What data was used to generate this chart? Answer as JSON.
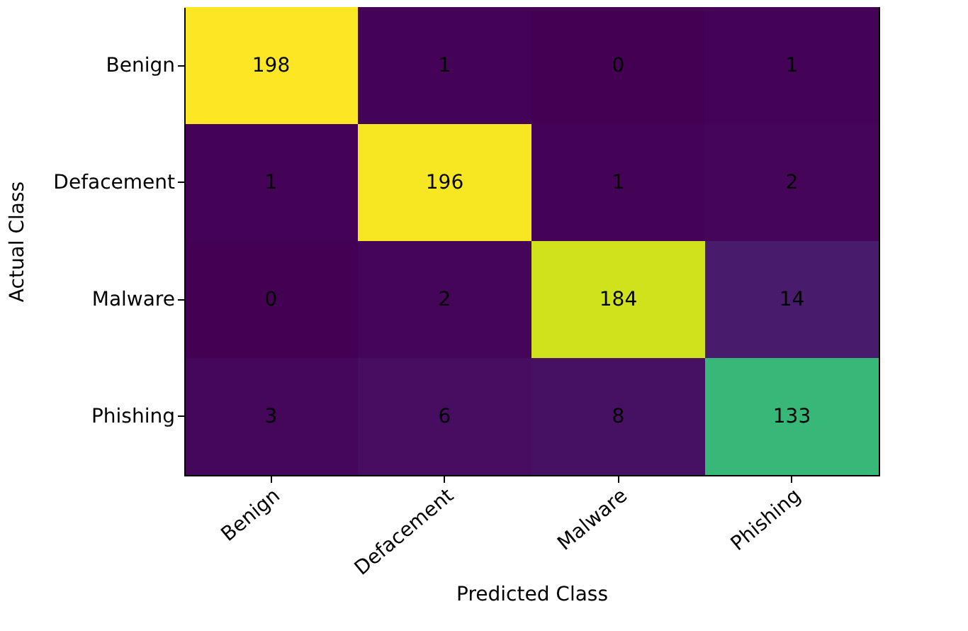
{
  "chart_data": {
    "type": "heatmap",
    "xlabel": "Predicted Class",
    "ylabel": "Actual Class",
    "categories": [
      "Benign",
      "Defacement",
      "Malware",
      "Phishing"
    ],
    "y_categories": [
      "Benign",
      "Defacement",
      "Malware",
      "Phishing"
    ],
    "cells": [
      [
        198,
        1,
        0,
        1
      ],
      [
        1,
        196,
        1,
        2
      ],
      [
        0,
        2,
        184,
        14
      ],
      [
        3,
        6,
        8,
        133
      ]
    ],
    "data_labels": true
  }
}
